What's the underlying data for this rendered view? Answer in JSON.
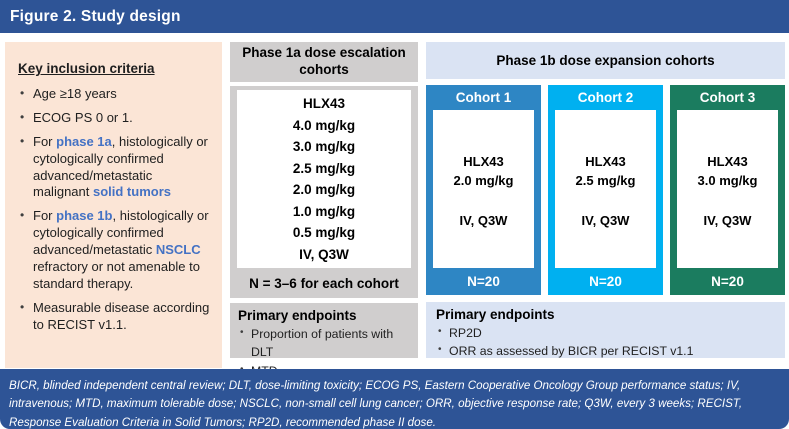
{
  "figure": {
    "title": "Figure 2. Study design"
  },
  "colors": {
    "band_blue": "#2E5496",
    "inclusion_peach": "#FBE5D6",
    "panel_gray": "#D0CECE",
    "panel_light_blue": "#DAE3F3",
    "accent_text_blue": "#4472C4",
    "cohort1": "#2E86C4",
    "cohort2": "#00B0F0",
    "cohort3": "#1B7C5F"
  },
  "inclusion": {
    "heading": "Key inclusion criteria",
    "bullets": [
      [
        {
          "t": "Age ≥18 years"
        }
      ],
      [
        {
          "t": "ECOG PS 0 or 1."
        }
      ],
      [
        {
          "t": "For "
        },
        {
          "t": "phase 1a",
          "em": true
        },
        {
          "t": ", histologically or cytologically confirmed advanced/metastatic malignant "
        },
        {
          "t": "solid tumors",
          "em": true
        }
      ],
      [
        {
          "t": "For "
        },
        {
          "t": "phase 1b",
          "em": true
        },
        {
          "t": ", histologically or cytologically confirmed advanced/metastatic "
        },
        {
          "t": "NSCLC",
          "em": true
        },
        {
          "t": " refractory or not amenable to standard therapy."
        }
      ],
      [
        {
          "t": "Measurable disease according to RECIST v1.1."
        }
      ]
    ]
  },
  "phase1a": {
    "header": "Phase 1a dose escalation cohorts",
    "drug": "HLX43",
    "doses": [
      "4.0 mg/kg",
      "3.0 mg/kg",
      "2.5 mg/kg",
      "2.0 mg/kg",
      "1.0 mg/kg",
      "0.5 mg/kg"
    ],
    "schedule": "IV, Q3W",
    "n_note": "N = 3–6 for each cohort",
    "endpoints_heading": "Primary endpoints",
    "endpoints": [
      "Proportion of patients with DLT",
      "MTD"
    ]
  },
  "phase1b": {
    "header": "Phase 1b dose expansion cohorts",
    "cohorts": [
      {
        "label": "Cohort 1",
        "drug": "HLX43",
        "dose": "2.0 mg/kg",
        "schedule": "IV, Q3W",
        "n": "N=20",
        "color": "#2E86C4"
      },
      {
        "label": "Cohort 2",
        "drug": "HLX43",
        "dose": "2.5 mg/kg",
        "schedule": "IV, Q3W",
        "n": "N=20",
        "color": "#00B0F0"
      },
      {
        "label": "Cohort 3",
        "drug": "HLX43",
        "dose": "3.0 mg/kg",
        "schedule": "IV, Q3W",
        "n": "N=20",
        "color": "#1B7C5F"
      }
    ],
    "endpoints_heading": "Primary endpoints",
    "endpoints": [
      "RP2D",
      "ORR as assessed by BICR per RECIST v1.1"
    ]
  },
  "footnote": "BICR, blinded independent central review; DLT, dose-limiting toxicity; ECOG PS, Eastern Cooperative Oncology Group performance status; IV, intravenous; MTD, maximum tolerable dose; NSCLC, non-small cell lung cancer; ORR, objective response rate; Q3W, every 3 weeks; RECIST, Response Evaluation Criteria in Solid Tumors; RP2D, recommended phase II dose."
}
